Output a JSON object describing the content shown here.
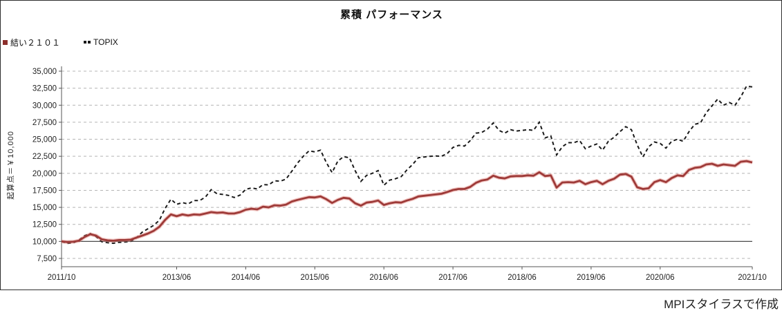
{
  "title": "累積 パフォーマンス",
  "y_axis_title": "起算点＝￥10,000",
  "footer": "MPIスタイラスで作成",
  "legend": [
    {
      "label": "結い２１０１",
      "color": "#8c2f2c",
      "marker": "square"
    },
    {
      "label": "TOPIX",
      "color": "#1a1a1a",
      "marker": "dashes"
    }
  ],
  "chart_data": {
    "type": "line",
    "title": "累積 パフォーマンス",
    "xlabel": "",
    "ylabel": "起算点＝￥10,000",
    "x_start": "2011/10",
    "x_end": "2021/10",
    "frequency": "monthly",
    "x_range_months": 120,
    "ylim": [
      7500,
      35000
    ],
    "grid": "horizontal-dashed",
    "legend_position": "top-left",
    "baseline": {
      "value": 10000,
      "style": "solid"
    },
    "y_ticks": [
      7500,
      10000,
      12500,
      15000,
      17500,
      20000,
      22500,
      25000,
      27500,
      30000,
      32500,
      35000
    ],
    "y_tick_labels": [
      "7,500",
      "10,000",
      "12,500",
      "15,000",
      "17,500",
      "20,000",
      "22,500",
      "25,000",
      "27,500",
      "30,000",
      "32,500",
      "35,000"
    ],
    "x_ticks": [
      {
        "label": "2011/10",
        "month": 0
      },
      {
        "label": "2013/06",
        "month": 20
      },
      {
        "label": "2014/06",
        "month": 32
      },
      {
        "label": "2015/06",
        "month": 44
      },
      {
        "label": "2016/06",
        "month": 56
      },
      {
        "label": "2017/06",
        "month": 68
      },
      {
        "label": "2018/06",
        "month": 80
      },
      {
        "label": "2019/06",
        "month": 92
      },
      {
        "label": "2020/06",
        "month": 104
      },
      {
        "label": "2021/10",
        "month": 120
      }
    ],
    "series": [
      {
        "name": "TOPIX",
        "style": "dashed",
        "color": "#1a1a1a",
        "values": [
          10000,
          9700,
          9780,
          10180,
          10850,
          11150,
          10700,
          9950,
          9800,
          9720,
          9850,
          9900,
          10000,
          10500,
          11350,
          11850,
          12350,
          13100,
          14850,
          16200,
          15450,
          15700,
          15500,
          16000,
          16000,
          16500,
          17600,
          17000,
          16900,
          16750,
          16450,
          16800,
          17650,
          17850,
          17700,
          18350,
          18300,
          18900,
          18850,
          19150,
          20300,
          21500,
          22500,
          23300,
          23150,
          23400,
          21600,
          20100,
          21800,
          22450,
          22300,
          20400,
          18800,
          19700,
          20000,
          20400,
          18250,
          19000,
          19200,
          19500,
          20500,
          21300,
          22300,
          22400,
          22500,
          22550,
          22500,
          22900,
          23800,
          24100,
          24000,
          24800,
          25900,
          26000,
          26500,
          27400,
          26300,
          25900,
          26400,
          26200,
          26300,
          26400,
          26300,
          27500,
          25200,
          25500,
          22700,
          23900,
          24500,
          24500,
          24800,
          23600,
          24000,
          24300,
          23400,
          24700,
          25300,
          26100,
          26850,
          26400,
          24200,
          22400,
          23900,
          24600,
          24400,
          23700,
          24700,
          25000,
          24700,
          26100,
          27200,
          27400,
          28900,
          29900,
          30900,
          30000,
          30400,
          30000,
          31200,
          32800,
          32700
        ]
      },
      {
        "name": "結い２１０１",
        "style": "solid",
        "color": "#9e3a38",
        "values": [
          10000,
          9900,
          9950,
          10100,
          10650,
          11050,
          10850,
          10300,
          10150,
          10100,
          10200,
          10200,
          10250,
          10550,
          10850,
          11150,
          11550,
          12150,
          13150,
          13950,
          13700,
          13950,
          13800,
          13950,
          13900,
          14100,
          14300,
          14200,
          14250,
          14100,
          14100,
          14300,
          14650,
          14800,
          14700,
          15100,
          15000,
          15300,
          15250,
          15400,
          15850,
          16100,
          16300,
          16500,
          16450,
          16600,
          16200,
          15650,
          16100,
          16400,
          16300,
          15600,
          15250,
          15700,
          15800,
          16000,
          15350,
          15600,
          15750,
          15700,
          16000,
          16250,
          16600,
          16700,
          16800,
          16900,
          17000,
          17250,
          17550,
          17700,
          17700,
          18000,
          18600,
          18950,
          19100,
          19650,
          19350,
          19250,
          19550,
          19600,
          19600,
          19700,
          19650,
          20150,
          19600,
          19700,
          17900,
          18650,
          18700,
          18650,
          18900,
          18400,
          18700,
          18900,
          18400,
          18900,
          19200,
          19800,
          19900,
          19500,
          17950,
          17700,
          17800,
          18700,
          19000,
          18700,
          19300,
          19700,
          19600,
          20500,
          20800,
          20900,
          21300,
          21400,
          21100,
          21300,
          21200,
          21100,
          21700,
          21800,
          21600
        ]
      }
    ]
  }
}
